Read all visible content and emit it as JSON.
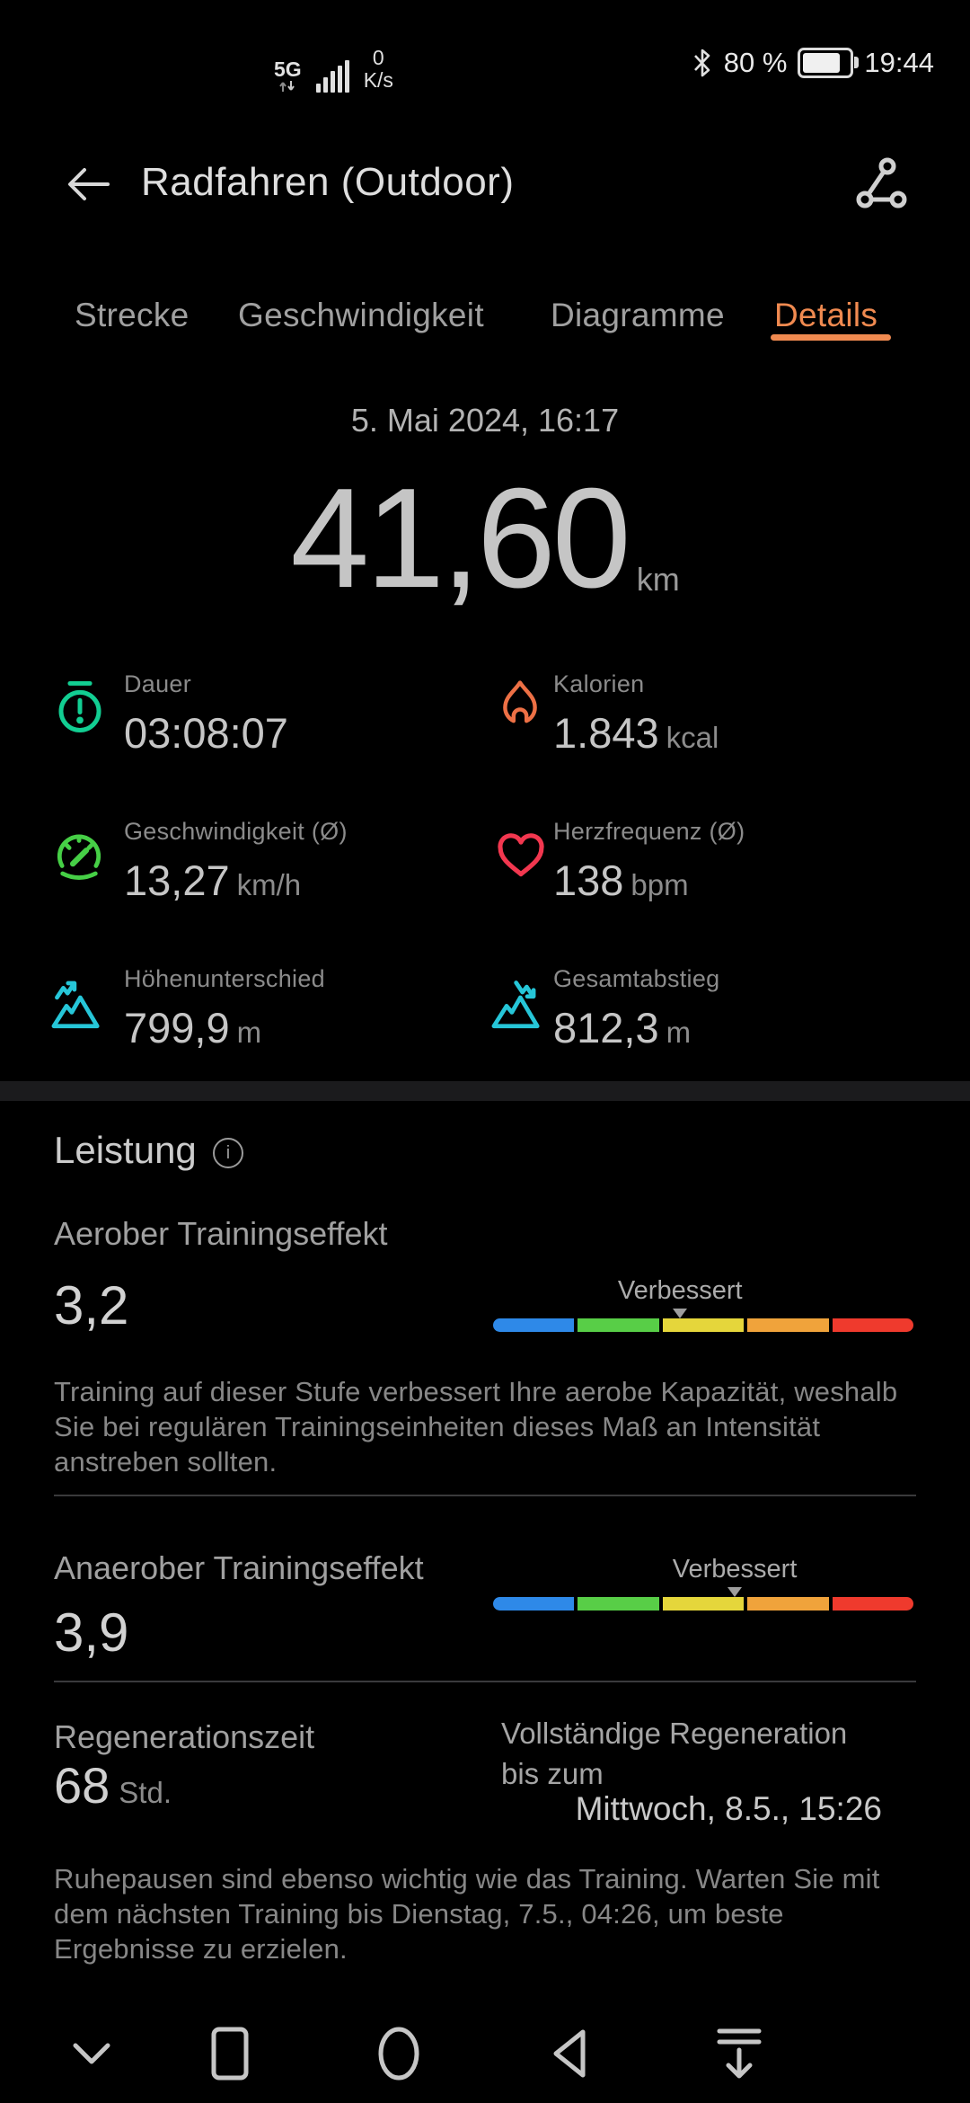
{
  "status_bar": {
    "network": "5G",
    "speed_value": "0",
    "speed_unit": "K/s",
    "battery_percent": "80 %",
    "time": "19:44"
  },
  "header": {
    "title": "Radfahren (Outdoor)"
  },
  "tabs": [
    {
      "label": "Strecke",
      "active": false
    },
    {
      "label": "Geschwindigkeit",
      "active": false
    },
    {
      "label": "Diagramme",
      "active": false
    },
    {
      "label": "Details",
      "active": true
    }
  ],
  "summary": {
    "datetime": "5. Mai 2024, 16:17",
    "distance": "41,60",
    "unit": "km"
  },
  "stats": [
    {
      "label": "Dauer",
      "value": "03:08:07",
      "unit": "",
      "icon": "stopwatch-icon",
      "color": "#12ce92"
    },
    {
      "label": "Kalorien",
      "value": "1.843",
      "unit": "kcal",
      "icon": "flame-icon",
      "color": "#ed7045"
    },
    {
      "label": "Geschwindigkeit (Ø)",
      "value": "13,27",
      "unit": "km/h",
      "icon": "speedometer-icon",
      "color": "#46cf46"
    },
    {
      "label": "Herzfrequenz (Ø)",
      "value": "138",
      "unit": "bpm",
      "icon": "heart-icon",
      "color": "#f2374f"
    },
    {
      "label": "Höhenunterschied",
      "value": "799,9",
      "unit": "m",
      "icon": "mountain-ascent-icon",
      "color": "#26c6d8"
    },
    {
      "label": "Gesamtabstieg",
      "value": "812,3",
      "unit": "m",
      "icon": "mountain-descent-icon",
      "color": "#26c6d8"
    }
  ],
  "performance": {
    "title": "Leistung",
    "accent_color": "#f08a50",
    "bar_colors": [
      "#2e89e8",
      "#58ce47",
      "#e5d63b",
      "#f0a33b",
      "#ef3a2d"
    ],
    "aerobic": {
      "label": "Aerober Trainingseffekt",
      "value": "3,2",
      "marker_label": "Verbessert",
      "marker_percent": 44.5,
      "description": "Training auf dieser Stufe verbessert Ihre aerobe Kapazität, weshalb Sie bei regulären Trainingseinheiten dieses Maß an Intensität anstreben sollten."
    },
    "anaerobic": {
      "label": "Anaerober Trainingseffekt",
      "value": "3,9",
      "marker_label": "Verbessert",
      "marker_percent": 57.5
    },
    "regeneration": {
      "label": "Regenerationszeit",
      "value": "68",
      "unit": "Std.",
      "info": "Vollständige Regeneration bis zum",
      "until": "Mittwoch, 8.5., 15:26",
      "note": "Ruhepausen sind ebenso wichtig wie das Training. Warten Sie mit dem nächsten Training bis Dienstag, 7.5., 04:26, um beste Ergebnisse zu erzielen."
    }
  },
  "nav": {
    "icons": [
      "hide-nav",
      "recents",
      "home",
      "back",
      "collapse"
    ]
  }
}
